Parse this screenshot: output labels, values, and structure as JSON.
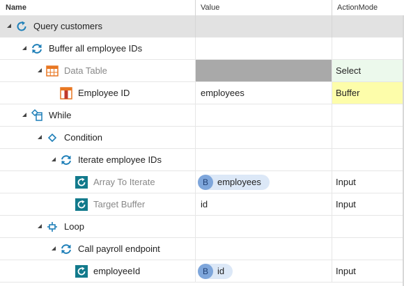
{
  "header": {
    "name": "Name",
    "value": "Value",
    "action_mode": "ActionMode"
  },
  "rows": [
    {
      "label": "Query customers"
    },
    {
      "label": "Buffer all employee IDs"
    },
    {
      "label": "Data Table",
      "action_mode": "Select"
    },
    {
      "label": "Employee ID",
      "value": "employees",
      "action_mode": "Buffer"
    },
    {
      "label": "While"
    },
    {
      "label": "Condition"
    },
    {
      "label": "Iterate employee IDs"
    },
    {
      "label": "Array To Iterate",
      "value": "employees",
      "value_badge": "B",
      "action_mode": "Input"
    },
    {
      "label": "Target Buffer",
      "value": "id",
      "action_mode": "Input"
    },
    {
      "label": "Loop"
    },
    {
      "label": "Call payroll endpoint"
    },
    {
      "label": "employeeId",
      "value": "id",
      "value_badge": "B",
      "action_mode": "Input"
    }
  ],
  "colors": {
    "selected_row": "#e2e2e2",
    "select_mode_bg": "#ecf9ec",
    "buffer_mode_bg": "#fdfdaa",
    "icon_blue": "#1e7fb8",
    "icon_teal": "#127a8c",
    "table_icon_orange": "#e87722"
  }
}
